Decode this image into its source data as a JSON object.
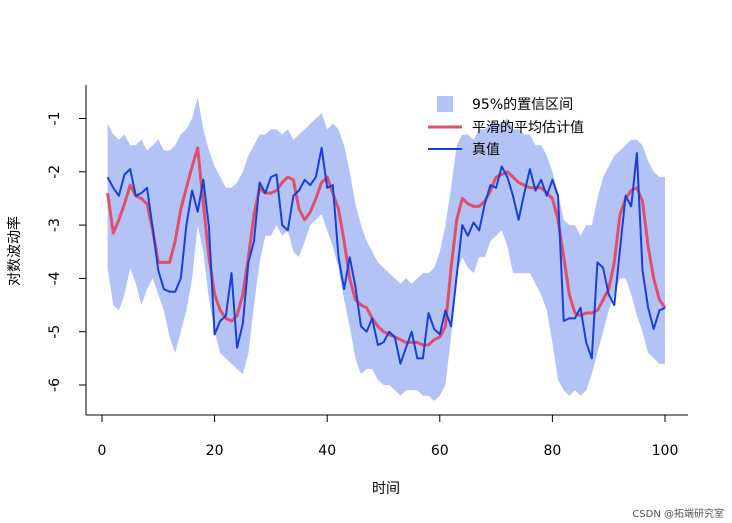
{
  "chart_data": {
    "type": "line",
    "title": "",
    "xlabel": "时间",
    "ylabel": "对数波动率",
    "xlim": [
      0,
      100
    ],
    "ylim": [
      -6.5,
      -0.6
    ],
    "xticks": [
      0,
      20,
      40,
      60,
      80,
      100
    ],
    "yticks": [
      -6,
      -5,
      -4,
      -3,
      -2,
      -1
    ],
    "grid": false,
    "legend_position": "top-right",
    "legend": [
      {
        "label": "95%的置信区间",
        "kind": "band",
        "color": "#b3c3f5"
      },
      {
        "label": "平滑的平均估计值",
        "kind": "line",
        "color": "#e0506a"
      },
      {
        "label": "真值",
        "kind": "line",
        "color": "#1a3fd4"
      }
    ],
    "x": [
      1,
      2,
      3,
      4,
      5,
      6,
      7,
      8,
      9,
      10,
      11,
      12,
      13,
      14,
      15,
      16,
      17,
      18,
      19,
      20,
      21,
      22,
      23,
      24,
      25,
      26,
      27,
      28,
      29,
      30,
      31,
      32,
      33,
      34,
      35,
      36,
      37,
      38,
      39,
      40,
      41,
      42,
      43,
      44,
      45,
      46,
      47,
      48,
      49,
      50,
      51,
      52,
      53,
      54,
      55,
      56,
      57,
      58,
      59,
      60,
      61,
      62,
      63,
      64,
      65,
      66,
      67,
      68,
      69,
      70,
      71,
      72,
      73,
      74,
      75,
      76,
      77,
      78,
      79,
      80,
      81,
      82,
      83,
      84,
      85,
      86,
      87,
      88,
      89,
      90,
      91,
      92,
      93,
      94,
      95,
      96,
      97,
      98,
      99,
      100
    ],
    "series": [
      {
        "name": "95%的置信区间",
        "kind": "band",
        "color": "#b3c3f5",
        "upper": [
          -1.1,
          -1.3,
          -1.4,
          -1.3,
          -1.5,
          -1.5,
          -1.4,
          -1.6,
          -1.5,
          -1.4,
          -1.6,
          -1.6,
          -1.5,
          -1.3,
          -1.2,
          -1.0,
          -0.6,
          -1.2,
          -1.6,
          -1.9,
          -2.1,
          -2.3,
          -2.3,
          -2.2,
          -2.0,
          -1.7,
          -1.5,
          -1.3,
          -1.3,
          -1.2,
          -1.2,
          -1.3,
          -1.2,
          -1.4,
          -1.3,
          -1.2,
          -1.1,
          -1.0,
          -0.9,
          -1.2,
          -1.1,
          -1.2,
          -1.5,
          -2.0,
          -2.6,
          -3.0,
          -3.3,
          -3.5,
          -3.7,
          -3.8,
          -3.9,
          -4.0,
          -4.1,
          -4.0,
          -4.1,
          -4.0,
          -3.9,
          -3.9,
          -3.8,
          -3.5,
          -3.0,
          -2.3,
          -1.5,
          -1.3,
          -1.3,
          -1.4,
          -1.2,
          -1.2,
          -1.1,
          -1.1,
          -1.1,
          -1.0,
          -1.2,
          -1.2,
          -1.3,
          -1.3,
          -1.5,
          -1.5,
          -1.7,
          -2.0,
          -2.4,
          -2.9,
          -3.0,
          -3.0,
          -3.2,
          -3.0,
          -3.0,
          -2.5,
          -2.1,
          -1.9,
          -1.7,
          -1.6,
          -1.5,
          -1.4,
          -1.4,
          -1.5,
          -1.8,
          -2.0,
          -2.1,
          -2.1
        ],
        "lower": [
          -3.8,
          -4.5,
          -4.6,
          -4.3,
          -3.8,
          -4.1,
          -4.5,
          -4.2,
          -4.0,
          -4.3,
          -4.6,
          -5.1,
          -5.4,
          -5.0,
          -4.6,
          -4.0,
          -3.0,
          -3.5,
          -4.4,
          -5.0,
          -5.4,
          -5.5,
          -5.6,
          -5.7,
          -5.8,
          -5.4,
          -4.5,
          -3.7,
          -3.2,
          -3.2,
          -3.0,
          -3.2,
          -3.1,
          -3.5,
          -3.6,
          -3.3,
          -3.0,
          -2.9,
          -2.8,
          -3.1,
          -3.4,
          -3.8,
          -4.4,
          -4.9,
          -5.5,
          -5.8,
          -5.7,
          -5.7,
          -5.9,
          -6.0,
          -6.0,
          -6.1,
          -6.2,
          -6.1,
          -6.1,
          -6.1,
          -6.2,
          -6.2,
          -6.3,
          -6.2,
          -6.0,
          -5.1,
          -3.9,
          -3.6,
          -3.8,
          -3.9,
          -3.6,
          -3.6,
          -3.3,
          -3.2,
          -3.1,
          -3.4,
          -3.9,
          -3.9,
          -3.9,
          -3.9,
          -4.1,
          -4.3,
          -4.6,
          -5.2,
          -5.9,
          -6.1,
          -6.2,
          -6.1,
          -6.2,
          -6.1,
          -5.8,
          -5.4,
          -5.0,
          -4.6,
          -4.3,
          -4.0,
          -4.0,
          -4.3,
          -4.7,
          -5.0,
          -5.4,
          -5.5,
          -5.6,
          -5.6
        ]
      },
      {
        "name": "平滑的平均估计值",
        "kind": "line",
        "color": "#e0506a",
        "values": [
          -2.4,
          -3.15,
          -2.9,
          -2.6,
          -2.25,
          -2.45,
          -2.5,
          -2.6,
          -3.1,
          -3.7,
          -3.7,
          -3.7,
          -3.3,
          -2.7,
          -2.3,
          -1.9,
          -1.55,
          -2.6,
          -3.6,
          -4.3,
          -4.6,
          -4.75,
          -4.8,
          -4.7,
          -4.3,
          -3.6,
          -2.8,
          -2.3,
          -2.4,
          -2.4,
          -2.35,
          -2.2,
          -2.1,
          -2.15,
          -2.7,
          -2.9,
          -2.75,
          -2.5,
          -2.2,
          -2.1,
          -2.4,
          -2.7,
          -3.3,
          -4.0,
          -4.4,
          -4.5,
          -4.55,
          -4.75,
          -4.9,
          -5.0,
          -5.05,
          -5.1,
          -5.15,
          -5.2,
          -5.2,
          -5.2,
          -5.25,
          -5.25,
          -5.15,
          -5.1,
          -4.9,
          -3.8,
          -2.9,
          -2.5,
          -2.6,
          -2.65,
          -2.65,
          -2.55,
          -2.35,
          -2.1,
          -2.05,
          -2.0,
          -2.1,
          -2.2,
          -2.25,
          -2.3,
          -2.3,
          -2.3,
          -2.4,
          -2.5,
          -2.9,
          -3.6,
          -4.3,
          -4.65,
          -4.7,
          -4.65,
          -4.65,
          -4.6,
          -4.4,
          -4.2,
          -3.7,
          -2.8,
          -2.5,
          -2.35,
          -2.3,
          -2.55,
          -3.4,
          -4.0,
          -4.4,
          -4.55
        ]
      },
      {
        "name": "真值",
        "kind": "line",
        "color": "#1a3fd4",
        "values": [
          -2.1,
          -2.3,
          -2.45,
          -2.05,
          -1.95,
          -2.45,
          -2.4,
          -2.3,
          -3.05,
          -3.85,
          -4.2,
          -4.25,
          -4.25,
          -4.0,
          -3.0,
          -2.35,
          -2.75,
          -2.15,
          -3.05,
          -5.05,
          -4.8,
          -4.7,
          -3.9,
          -5.3,
          -4.85,
          -3.7,
          -3.3,
          -2.2,
          -2.4,
          -2.1,
          -2.05,
          -3.0,
          -3.1,
          -2.45,
          -2.35,
          -2.15,
          -2.25,
          -2.1,
          -1.55,
          -2.3,
          -2.25,
          -3.6,
          -4.2,
          -3.6,
          -4.15,
          -4.9,
          -5.0,
          -4.75,
          -5.25,
          -5.2,
          -5.0,
          -5.1,
          -5.6,
          -5.3,
          -5.0,
          -5.5,
          -5.5,
          -4.65,
          -4.95,
          -5.05,
          -4.6,
          -4.9,
          -3.95,
          -3.0,
          -3.2,
          -2.95,
          -3.1,
          -2.6,
          -2.25,
          -2.3,
          -1.9,
          -2.1,
          -2.45,
          -2.9,
          -2.4,
          -1.95,
          -2.35,
          -2.15,
          -2.45,
          -2.15,
          -2.45,
          -4.8,
          -4.75,
          -4.75,
          -4.55,
          -5.2,
          -5.5,
          -3.7,
          -3.8,
          -4.3,
          -4.5,
          -3.45,
          -2.45,
          -2.65,
          -1.65,
          -3.85,
          -4.55,
          -4.95,
          -4.6,
          -4.55
        ]
      }
    ]
  },
  "watermark": "CSDN @拓端研究室"
}
